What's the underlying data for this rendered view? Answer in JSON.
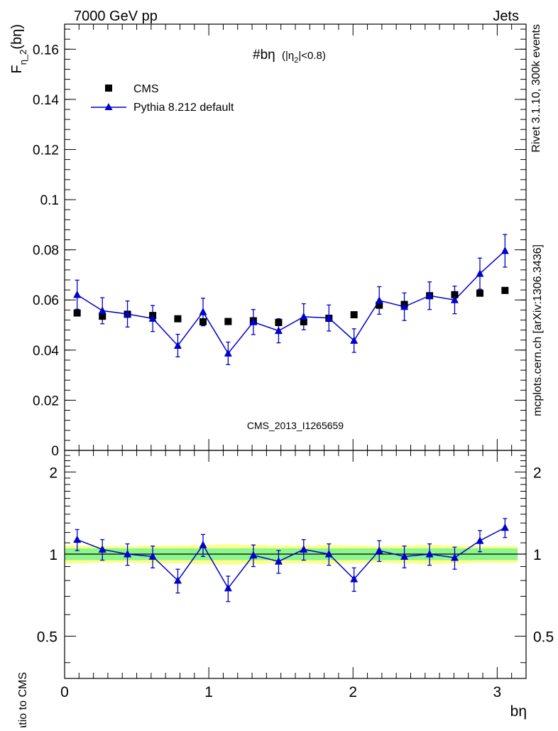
{
  "header": {
    "left": "7000 GeV pp",
    "right": "Jets"
  },
  "side_labels": {
    "rivet": "Rivet 3.1.10,  300k events",
    "mcplots": "mcplots.cern.ch [arXiv:1306.3436]"
  },
  "colors": {
    "mc": "#0000cc",
    "data": "#000000",
    "band_inner": "#8cf58c",
    "band_outer": "#fefe8c",
    "watermark": "#888888"
  },
  "chart_data": [
    {
      "type": "scatter",
      "panel": "main",
      "title": "#bη",
      "title_cut": "(|η",
      "title_cut_sub": "2",
      "title_cut_tail": "|<0.8)",
      "ylabel_main": "F",
      "ylabel_sub": "η_2",
      "ylabel_tail": "(bη)",
      "watermark": "CMS_2013_I1265659",
      "xlim": [
        0,
        3.2
      ],
      "ylim": [
        0,
        0.17
      ],
      "yticks": [
        "0",
        "0.02",
        "0.04",
        "0.06",
        "0.08",
        "0.1",
        "0.12",
        "0.14",
        "0.16"
      ],
      "ytick_values": [
        0,
        0.02,
        0.04,
        0.06,
        0.08,
        0.1,
        0.12,
        0.14,
        0.16
      ],
      "x": [
        0.087,
        0.262,
        0.436,
        0.611,
        0.785,
        0.96,
        1.134,
        1.309,
        1.484,
        1.658,
        1.833,
        2.007,
        2.182,
        2.356,
        2.531,
        2.705,
        2.88,
        3.054
      ],
      "series": [
        {
          "name": "CMS",
          "marker": "square",
          "values": [
            0.0548,
            0.0535,
            0.0543,
            0.0538,
            0.0525,
            0.0513,
            0.0514,
            0.0517,
            0.051,
            0.0513,
            0.0527,
            0.0541,
            0.0579,
            0.0582,
            0.0617,
            0.0621,
            0.0627,
            0.0638
          ]
        },
        {
          "name": "Pythia 8.212 default",
          "marker": "triangle",
          "values": [
            0.0621,
            0.0557,
            0.0544,
            0.0526,
            0.0418,
            0.0552,
            0.0387,
            0.0512,
            0.0477,
            0.0533,
            0.0528,
            0.0438,
            0.0598,
            0.0573,
            0.0617,
            0.06,
            0.0705,
            0.0796
          ],
          "errors": [
            0.0058,
            0.0052,
            0.0052,
            0.0052,
            0.0045,
            0.0055,
            0.0045,
            0.005,
            0.0048,
            0.0052,
            0.0052,
            0.0047,
            0.0055,
            0.0055,
            0.0055,
            0.0055,
            0.0062,
            0.0065
          ]
        }
      ],
      "legend_position": "top-left"
    },
    {
      "type": "scatter",
      "panel": "ratio",
      "ylabel": "Ratio to CMS",
      "xlabel": "bη",
      "xlim": [
        0,
        3.2
      ],
      "ylim": [
        0.35,
        2.4
      ],
      "yscale": "log",
      "xticks": [
        "0",
        "1",
        "2",
        "3"
      ],
      "xtick_values": [
        0,
        1,
        2,
        3
      ],
      "yticks": [
        "0.5",
        "1",
        "2"
      ],
      "ytick_values": [
        0.5,
        1,
        2
      ],
      "x": [
        0.087,
        0.262,
        0.436,
        0.611,
        0.785,
        0.96,
        1.134,
        1.309,
        1.484,
        1.658,
        1.833,
        2.007,
        2.182,
        2.356,
        2.531,
        2.705,
        2.88,
        3.054
      ],
      "ratio": [
        1.13,
        1.04,
        1.0,
        0.98,
        0.8,
        1.08,
        0.75,
        0.99,
        0.94,
        1.04,
        1.0,
        0.81,
        1.03,
        0.98,
        1.0,
        0.97,
        1.12,
        1.25
      ],
      "ratio_errors": [
        0.1,
        0.09,
        0.09,
        0.09,
        0.08,
        0.1,
        0.08,
        0.09,
        0.09,
        0.09,
        0.09,
        0.08,
        0.09,
        0.09,
        0.09,
        0.09,
        0.1,
        0.1
      ],
      "band_inner": [
        0.05,
        0.05,
        0.05,
        0.05,
        0.05,
        0.05,
        0.05,
        0.05,
        0.05,
        0.05,
        0.05,
        0.05,
        0.05,
        0.05,
        0.05,
        0.05,
        0.05,
        0.05
      ],
      "band_outer": [
        0.075,
        0.07,
        0.07,
        0.075,
        0.075,
        0.08,
        0.085,
        0.08,
        0.075,
        0.075,
        0.08,
        0.075,
        0.07,
        0.075,
        0.08,
        0.075,
        0.07,
        0.07
      ]
    }
  ]
}
